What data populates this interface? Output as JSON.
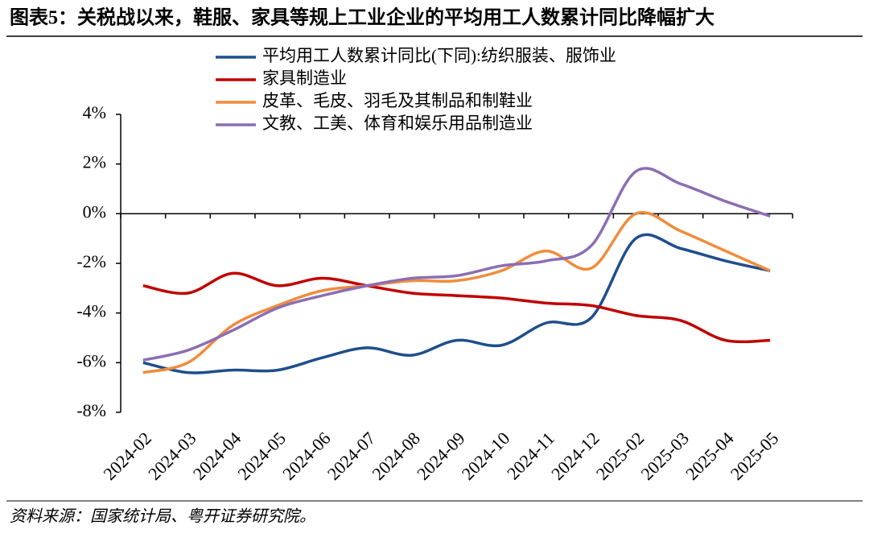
{
  "chart_data": {
    "type": "line",
    "title": "图表5：关税战以来，鞋服、家具等规上工业企业的平均用工人数累计同比降幅扩大",
    "source": "资料来源：国家统计局、粤开证券研究院。",
    "categories": [
      "2024-02",
      "2024-03",
      "2024-04",
      "2024-05",
      "2024-06",
      "2024-07",
      "2024-08",
      "2024-09",
      "2024-10",
      "2024-11",
      "2024-12",
      "2025-02",
      "2025-03",
      "2025-04",
      "2025-05"
    ],
    "series": [
      {
        "name": "平均用工人数累计同比(下同):纺织服装、服饰业",
        "color": "#1f4e8c",
        "values": [
          -6.0,
          -6.4,
          -6.3,
          -6.3,
          -5.8,
          -5.4,
          -5.7,
          -5.1,
          -5.3,
          -4.4,
          -4.2,
          -1.0,
          -1.4,
          -1.9,
          -2.3
        ]
      },
      {
        "name": "家具制造业",
        "color": "#c00000",
        "values": [
          -2.9,
          -3.2,
          -2.4,
          -2.9,
          -2.6,
          -2.9,
          -3.2,
          -3.3,
          -3.4,
          -3.6,
          -3.7,
          -4.1,
          -4.3,
          -5.1,
          -5.1
        ]
      },
      {
        "name": "皮革、毛皮、羽毛及其制品和制鞋业",
        "color": "#f08c3c",
        "values": [
          -6.4,
          -6.0,
          -4.5,
          -3.7,
          -3.1,
          -2.9,
          -2.7,
          -2.7,
          -2.3,
          -1.5,
          -2.2,
          0.0,
          -0.7,
          -1.5,
          -2.3
        ]
      },
      {
        "name": "文教、工美、体育和娱乐用品制造业",
        "color": "#8c6eb4",
        "values": [
          -5.9,
          -5.5,
          -4.7,
          -3.8,
          -3.3,
          -2.9,
          -2.6,
          -2.5,
          -2.1,
          -1.9,
          -1.3,
          1.7,
          1.2,
          0.5,
          -0.1
        ]
      }
    ],
    "ylim": [
      -8,
      4
    ],
    "yticks": [
      {
        "value": -8,
        "label": "-8%"
      },
      {
        "value": -6,
        "label": "-6%"
      },
      {
        "value": -4,
        "label": "-4%"
      },
      {
        "value": -2,
        "label": "-2%"
      },
      {
        "value": 0,
        "label": "0%"
      },
      {
        "value": 2,
        "label": "2%"
      },
      {
        "value": 4,
        "label": "4%"
      }
    ],
    "grid": false,
    "legend": "top"
  }
}
